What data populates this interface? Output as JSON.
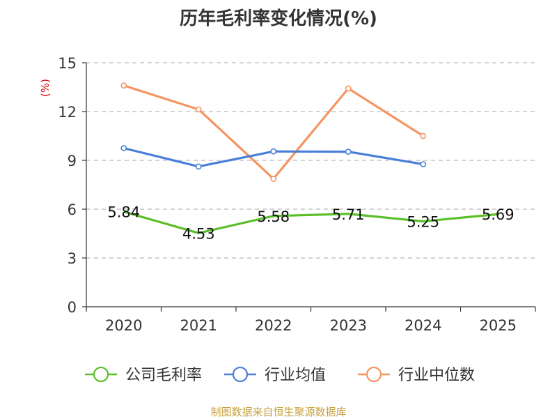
{
  "chart_data": {
    "type": "line",
    "title": "历年毛利率变化情况(%)",
    "ylabel": "(%)",
    "xlabel": "",
    "categories": [
      "2020",
      "2021",
      "2022",
      "2023",
      "2024",
      "2025"
    ],
    "yticks": [
      "0",
      "3",
      "6",
      "9",
      "12",
      "15"
    ],
    "ylim": [
      0,
      15
    ],
    "grid": true,
    "legend_position": "bottom",
    "series": [
      {
        "name": "公司毛利率",
        "color": "#5cbf2a",
        "values": [
          5.84,
          4.53,
          5.58,
          5.71,
          5.25,
          5.69
        ],
        "labels": [
          "5.84",
          "4.53",
          "5.58",
          "5.71",
          "5.25",
          "5.69"
        ]
      },
      {
        "name": "行业均值",
        "color": "#4a7fd8",
        "values": [
          9.75,
          8.62,
          9.55,
          9.53,
          8.76,
          null
        ]
      },
      {
        "name": "行业中位数",
        "color": "#f59461",
        "values": [
          13.6,
          12.13,
          7.87,
          13.42,
          10.5,
          null
        ]
      }
    ]
  },
  "footer": {
    "source": "制图数据来自恒生聚源数据库"
  },
  "colors": {
    "axis": "#333333",
    "grid": "#bbbbbb",
    "unit": "#dd0000",
    "source": "#c8a23e"
  }
}
